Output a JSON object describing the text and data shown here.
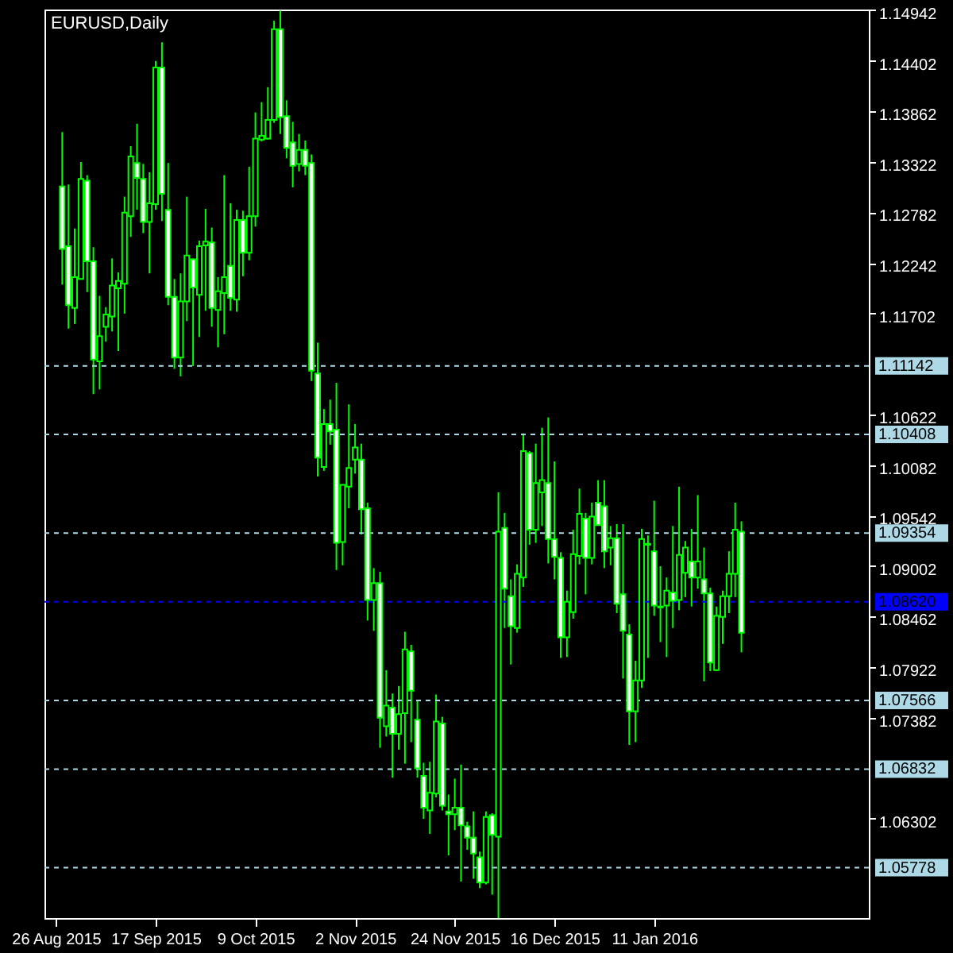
{
  "chart_data": {
    "type": "candlestick",
    "title": "EURUSD,Daily",
    "color": "#00ff00",
    "categories": [
      "26 Aug 2015",
      null,
      null,
      null,
      null,
      null,
      null,
      null,
      null,
      null,
      null,
      null,
      null,
      null,
      null,
      null,
      "17 Sep 2015",
      null,
      null,
      null,
      null,
      null,
      null,
      null,
      null,
      null,
      null,
      null,
      null,
      null,
      null,
      null,
      "9 Oct 2015",
      null,
      null,
      null,
      null,
      null,
      null,
      null,
      null,
      null,
      null,
      null,
      null,
      null,
      null,
      null,
      "2 Nov 2015",
      null,
      null,
      null,
      null,
      null,
      null,
      null,
      null,
      null,
      null,
      null,
      null,
      null,
      null,
      null,
      "24 Nov 2015",
      null,
      null,
      null,
      null,
      null,
      null,
      null,
      null,
      null,
      null,
      null,
      null,
      null,
      null,
      null,
      "16 Dec 2015",
      null,
      null,
      null,
      null,
      null,
      null,
      null,
      null,
      null,
      null,
      null,
      null,
      null,
      null,
      null,
      "11 Jan 2016",
      null,
      null,
      null,
      null,
      null,
      null,
      null,
      null,
      null,
      null,
      null,
      null,
      null,
      null,
      null,
      null,
      null,
      null,
      null,
      null,
      null,
      null,
      null,
      null,
      null,
      null,
      null,
      null,
      null,
      null,
      null,
      null,
      null,
      null,
      null,
      null,
      null,
      null,
      null,
      null
    ],
    "ohlc": [
      null,
      [
        1.1306,
        1.1364,
        1.1201,
        1.1239
      ],
      [
        1.1242,
        1.1308,
        1.1154,
        1.1179
      ],
      [
        1.1176,
        1.1261,
        1.1159,
        1.1209
      ],
      [
        1.1207,
        1.1332,
        1.1207,
        1.1314
      ],
      [
        1.1312,
        1.1318,
        1.1193,
        1.1226
      ],
      [
        1.1226,
        1.1241,
        1.1084,
        1.1121
      ],
      [
        1.1119,
        1.1189,
        1.1089,
        1.1146
      ],
      [
        1.1156,
        1.1177,
        1.114,
        1.1169
      ],
      [
        1.1167,
        1.1229,
        1.1151,
        1.12
      ],
      [
        1.1197,
        1.1214,
        1.113,
        1.1205
      ],
      [
        1.1202,
        1.1295,
        1.117,
        1.1278
      ],
      [
        1.1274,
        1.1349,
        1.1252,
        1.1338
      ],
      [
        1.1331,
        1.1373,
        1.1281,
        1.1315
      ],
      [
        1.1314,
        1.133,
        1.1256,
        1.1268
      ],
      [
        1.1268,
        1.1321,
        1.1213,
        1.1288
      ],
      [
        1.1287,
        1.144,
        1.1281,
        1.1433
      ],
      [
        1.1433,
        1.146,
        1.1269,
        1.1298
      ],
      [
        1.1281,
        1.1331,
        1.1179,
        1.1188
      ],
      [
        1.1188,
        1.1207,
        1.1111,
        1.1123
      ],
      [
        1.1123,
        1.1213,
        1.1103,
        1.1183
      ],
      [
        1.1183,
        1.1295,
        1.1162,
        1.1232
      ],
      [
        1.1228,
        1.1229,
        1.1114,
        1.1198
      ],
      [
        1.119,
        1.1248,
        1.1145,
        1.1242
      ],
      [
        1.1243,
        1.1282,
        1.1173,
        1.1247
      ],
      [
        1.1246,
        1.1262,
        1.1156,
        1.1176
      ],
      [
        1.1174,
        1.1209,
        1.1134,
        1.1194
      ],
      [
        1.1192,
        1.1318,
        1.1148,
        1.1209
      ],
      [
        1.1221,
        1.1288,
        1.1173,
        1.1187
      ],
      [
        1.1185,
        1.1281,
        1.1172,
        1.127
      ],
      [
        1.127,
        1.128,
        1.121,
        1.1235
      ],
      [
        1.1235,
        1.1327,
        1.1227,
        1.1274
      ],
      [
        1.1274,
        1.1385,
        1.1263,
        1.1357
      ],
      [
        1.1356,
        1.1396,
        1.1354,
        1.136
      ],
      [
        1.1357,
        1.1412,
        1.1356,
        1.1377
      ],
      [
        1.1377,
        1.1483,
        1.1374,
        1.1474
      ],
      [
        1.1474,
        1.1494,
        1.1362,
        1.138
      ],
      [
        1.1381,
        1.1398,
        1.1336,
        1.1347
      ],
      [
        1.1353,
        1.1375,
        1.1305,
        1.1328
      ],
      [
        1.133,
        1.1362,
        1.1322,
        1.1345
      ],
      [
        1.1345,
        1.1355,
        1.1318,
        1.1328
      ],
      [
        1.1331,
        1.134,
        1.1098,
        1.1109
      ],
      [
        1.1106,
        1.1139,
        1.0996,
        1.1016
      ],
      [
        1.1006,
        1.1068,
        1.1002,
        1.1052
      ],
      [
        1.1052,
        1.1078,
        1.103,
        1.1044
      ],
      [
        1.1046,
        1.1096,
        1.0896,
        1.0925
      ],
      [
        1.0926,
        1.0987,
        1.0901,
        1.0987
      ],
      [
        1.0985,
        1.1073,
        1.0962,
        1.1005
      ],
      [
        1.1014,
        1.1052,
        1.0999,
        1.1027
      ],
      [
        1.1014,
        1.1031,
        1.0934,
        1.0961
      ],
      [
        1.0962,
        1.0968,
        1.0842,
        1.0864
      ],
      [
        1.0864,
        1.0898,
        1.0831,
        1.0882
      ],
      [
        1.0882,
        1.0894,
        1.0706,
        1.0738
      ],
      [
        1.0729,
        1.0789,
        1.0718,
        1.0751
      ],
      [
        1.0749,
        1.0764,
        1.0674,
        1.0721
      ],
      [
        1.0721,
        1.0772,
        1.0704,
        1.0742
      ],
      [
        1.0743,
        1.083,
        1.0689,
        1.0811
      ],
      [
        1.0809,
        1.0816,
        1.0712,
        1.0767
      ],
      [
        1.0736,
        1.0757,
        1.0674,
        1.0684
      ],
      [
        1.0676,
        1.069,
        1.063,
        1.0642
      ],
      [
        1.0639,
        1.0691,
        1.0614,
        1.0658
      ],
      [
        1.0657,
        1.0763,
        1.0653,
        1.0734
      ],
      [
        1.0732,
        1.0739,
        1.0639,
        1.0644
      ],
      [
        1.0638,
        1.0656,
        1.0591,
        1.0635
      ],
      [
        1.0635,
        1.0673,
        1.0618,
        1.0642
      ],
      [
        1.0642,
        1.0688,
        1.0563,
        1.0623
      ],
      [
        1.0622,
        1.0627,
        1.0597,
        1.061
      ],
      [
        1.061,
        1.0638,
        1.0566,
        1.0593
      ],
      [
        1.0589,
        1.0595,
        1.0556,
        1.0562
      ],
      [
        1.0562,
        1.0638,
        1.056,
        1.0632
      ],
      [
        1.0634,
        1.0636,
        1.0549,
        1.0613
      ],
      [
        1.0611,
        1.0979,
        1.0524,
        1.0937
      ],
      [
        1.0941,
        1.0957,
        1.0834,
        1.0876
      ],
      [
        1.0868,
        1.0886,
        1.0795,
        1.0836
      ],
      [
        1.0834,
        1.0902,
        1.0829,
        1.0892
      ],
      [
        1.0888,
        1.1042,
        1.0878,
        1.1023
      ],
      [
        1.1021,
        1.1023,
        1.0923,
        1.0939
      ],
      [
        1.0939,
        1.1031,
        1.0925,
        1.0989
      ],
      [
        1.0979,
        1.1048,
        1.0943,
        1.0992
      ],
      [
        1.0989,
        1.1059,
        1.0903,
        1.0929
      ],
      [
        1.0929,
        1.1012,
        1.0886,
        1.091
      ],
      [
        1.0909,
        1.0915,
        1.0802,
        1.0824
      ],
      [
        1.0824,
        1.0874,
        1.0803,
        1.0862
      ],
      [
        1.0851,
        1.0939,
        1.0844,
        1.0913
      ],
      [
        1.0911,
        1.0983,
        1.0902,
        1.0956
      ],
      [
        1.0951,
        1.0957,
        1.087,
        1.0909
      ],
      [
        1.0909,
        1.0968,
        1.0902,
        1.0953
      ],
      [
        1.0968,
        1.0992,
        1.0944,
        1.0944
      ],
      [
        1.0964,
        1.0992,
        1.0898,
        1.0916
      ],
      [
        1.092,
        1.0943,
        1.0901,
        1.093
      ],
      [
        1.093,
        1.0945,
        1.085,
        1.086
      ],
      [
        1.087,
        1.0945,
        1.078,
        1.0831
      ],
      [
        1.0827,
        1.0838,
        1.0709,
        1.0745
      ],
      [
        1.0745,
        1.0799,
        1.0712,
        1.0778
      ],
      [
        1.0778,
        1.094,
        1.077,
        1.0929
      ],
      [
        1.0924,
        1.0933,
        1.0802,
        1.0923
      ],
      [
        1.0916,
        1.097,
        1.0847,
        1.0858
      ],
      [
        1.0857,
        1.09,
        1.0819,
        1.0856
      ],
      [
        1.0858,
        1.0888,
        1.0803,
        1.0874
      ],
      [
        1.0872,
        1.0943,
        1.0834,
        1.0863
      ],
      [
        1.0864,
        1.0985,
        1.0853,
        1.0912
      ],
      [
        1.0893,
        1.0927,
        1.0867,
        1.092
      ],
      [
        1.0905,
        1.094,
        1.0857,
        1.0888
      ],
      [
        1.0888,
        1.0976,
        1.0876,
        1.0905
      ],
      [
        1.0886,
        1.092,
        1.0777,
        1.0871
      ],
      [
        1.0871,
        1.0877,
        1.0788,
        1.0797
      ],
      [
        1.0789,
        1.0857,
        1.0788,
        1.0847
      ],
      [
        1.0846,
        1.0874,
        1.0817,
        1.0868
      ],
      [
        1.0868,
        1.0916,
        1.085,
        1.0892
      ],
      [
        1.0892,
        1.0968,
        1.0867,
        1.0939
      ],
      [
        1.0937,
        1.0948,
        1.0808,
        1.0829
      ],
      null,
      null,
      null,
      null,
      null,
      null,
      null,
      null,
      null,
      null,
      null,
      null,
      null,
      null,
      null,
      null,
      null,
      null,
      null,
      null,
      null,
      null,
      null,
      null,
      null,
      null
    ],
    "ylim": [
      1.0524,
      1.1495
    ],
    "yticks": [
      1.14942,
      1.14402,
      1.13862,
      1.13322,
      1.12782,
      1.12242,
      1.11702,
      1.10622,
      1.10082,
      1.09542,
      1.09002,
      1.08462,
      1.07922,
      1.07382,
      1.06302
    ],
    "ref_lines": [
      {
        "axis": "y",
        "value": 1.11142,
        "label": "1.11142",
        "color": "#add8e6",
        "line_style": "dashed"
      },
      {
        "axis": "y",
        "value": 1.10408,
        "label": "1.10408",
        "color": "#add8e6",
        "line_style": "dashed"
      },
      {
        "axis": "y",
        "value": 1.09354,
        "label": "1.09354",
        "color": "#add8e6",
        "line_style": "dashed"
      },
      {
        "axis": "y",
        "value": 1.0862,
        "label": "1.08620",
        "color": "#0000ff",
        "line_style": "dashed"
      },
      {
        "axis": "y",
        "value": 1.07566,
        "label": "1.07566",
        "color": "#add8e6",
        "line_style": "dashed"
      },
      {
        "axis": "y",
        "value": 1.06832,
        "label": "1.06832",
        "color": "#add8e6",
        "line_style": "dashed"
      },
      {
        "axis": "y",
        "value": 1.05778,
        "label": "1.05778",
        "color": "#add8e6",
        "line_style": "dashed"
      }
    ]
  }
}
